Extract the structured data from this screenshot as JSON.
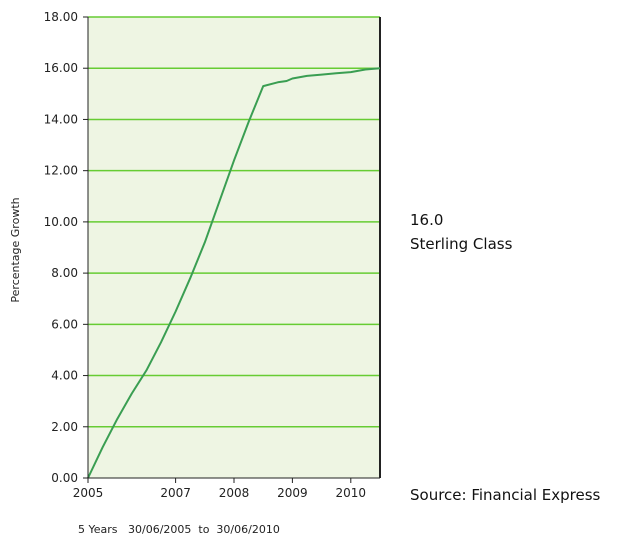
{
  "chart_data": {
    "type": "line",
    "ylabel": "Percentage Growth",
    "xlabel": "",
    "ylim": [
      0,
      18
    ],
    "yticks": [
      "0.00",
      "2.00",
      "4.00",
      "6.00",
      "8.00",
      "10.00",
      "12.00",
      "14.00",
      "16.00",
      "18.00"
    ],
    "xticks": [
      {
        "label": "2005",
        "x": 2005.5
      },
      {
        "label": "2007",
        "x": 2007.0
      },
      {
        "label": "2008",
        "x": 2008.0
      },
      {
        "label": "2009",
        "x": 2009.0
      },
      {
        "label": "2010",
        "x": 2010.0
      }
    ],
    "xlim": [
      2005.5,
      2010.5
    ],
    "grid": "horizontal",
    "series": [
      {
        "name": "Sterling Class",
        "x": [
          2005.5,
          2005.75,
          2006.0,
          2006.25,
          2006.5,
          2006.75,
          2007.0,
          2007.25,
          2007.5,
          2007.75,
          2008.0,
          2008.25,
          2008.5,
          2008.75,
          2008.9,
          2009.0,
          2009.25,
          2009.5,
          2009.75,
          2010.0,
          2010.25,
          2010.5
        ],
        "values": [
          0.0,
          1.2,
          2.3,
          3.3,
          4.2,
          5.3,
          6.5,
          7.8,
          9.2,
          10.8,
          12.4,
          13.9,
          15.3,
          15.45,
          15.5,
          15.6,
          15.7,
          15.75,
          15.8,
          15.85,
          15.95,
          16.0
        ]
      }
    ],
    "end_value": "16.0"
  },
  "side": {
    "end_value": "16.0",
    "series_name": "Sterling Class",
    "source": "Source: Financial Express"
  },
  "period": "5 Years   30/06/2005  to  30/06/2010",
  "colors": {
    "plot_bg": "#eef5e3",
    "grid": "#66cc33",
    "line": "#3a9e52",
    "axis": "#222222"
  }
}
